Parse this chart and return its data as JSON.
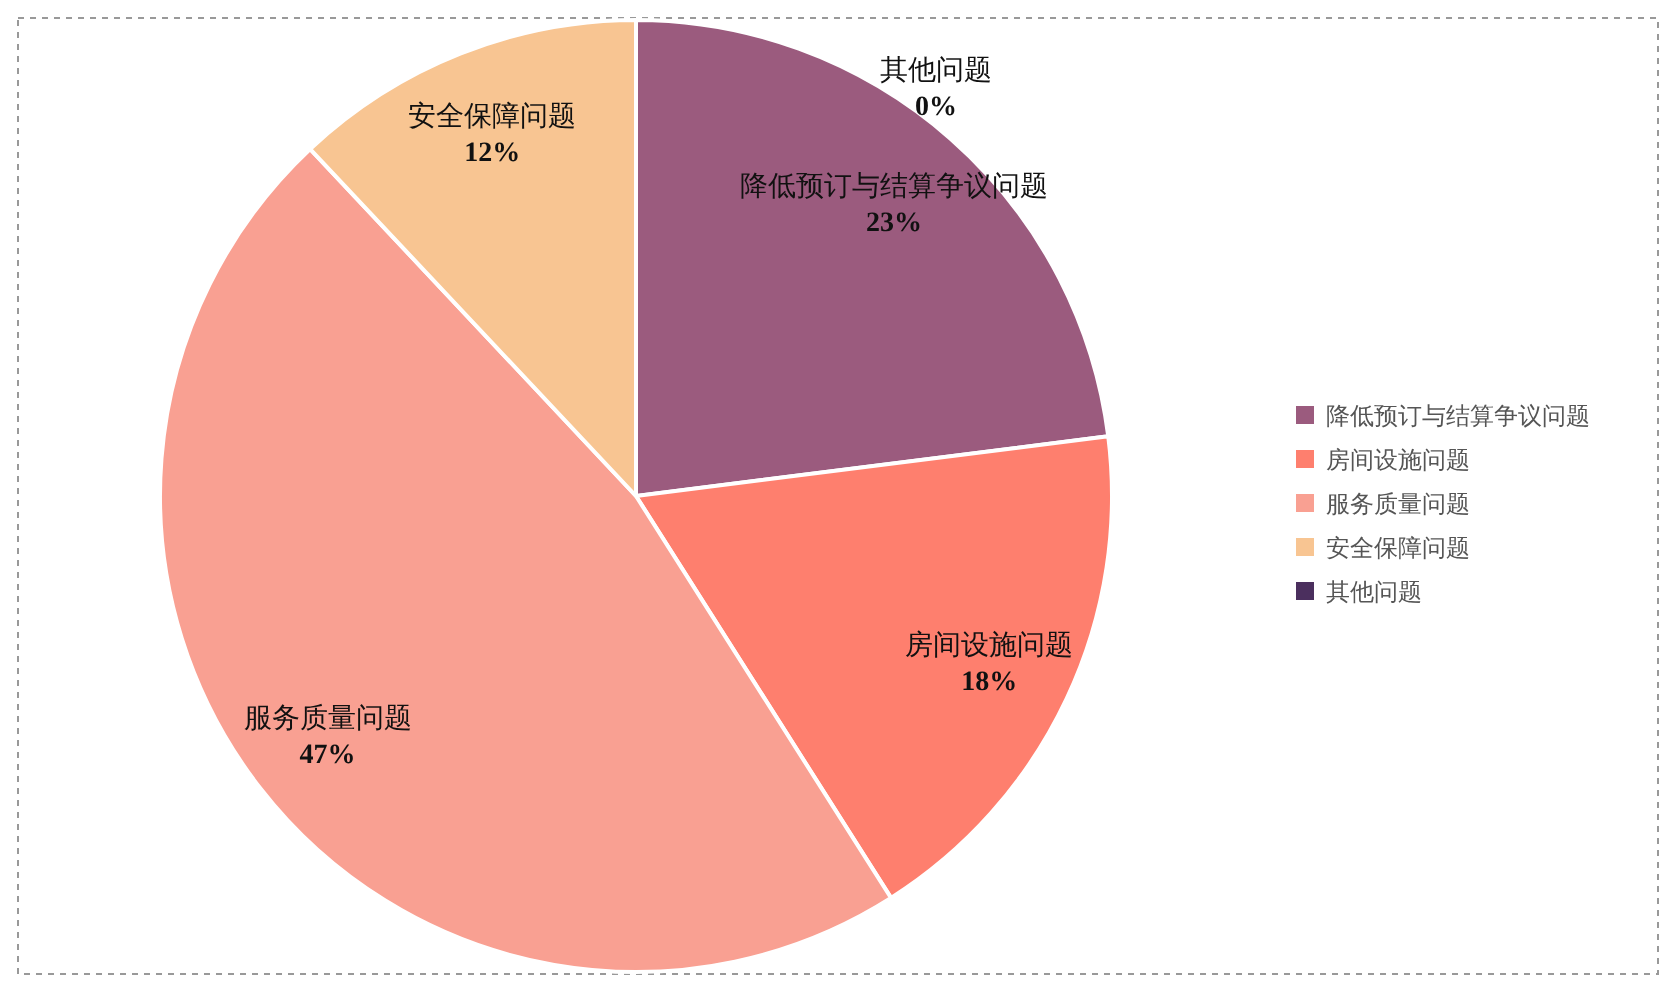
{
  "chart_data": {
    "type": "pie",
    "categories": [
      "降低预订与结算争议问题",
      "房间设施问题",
      "服务质量问题",
      "安全保障问题",
      "其他问题"
    ],
    "values": [
      23,
      18,
      47,
      12,
      0
    ],
    "colors": [
      "#9b5b7e",
      "#fe7f6e",
      "#f9a092",
      "#f8c592",
      "#4b2f5e"
    ],
    "value_labels": [
      "23%",
      "18%",
      "47%",
      "12%",
      "0%"
    ],
    "legend": "right"
  }
}
